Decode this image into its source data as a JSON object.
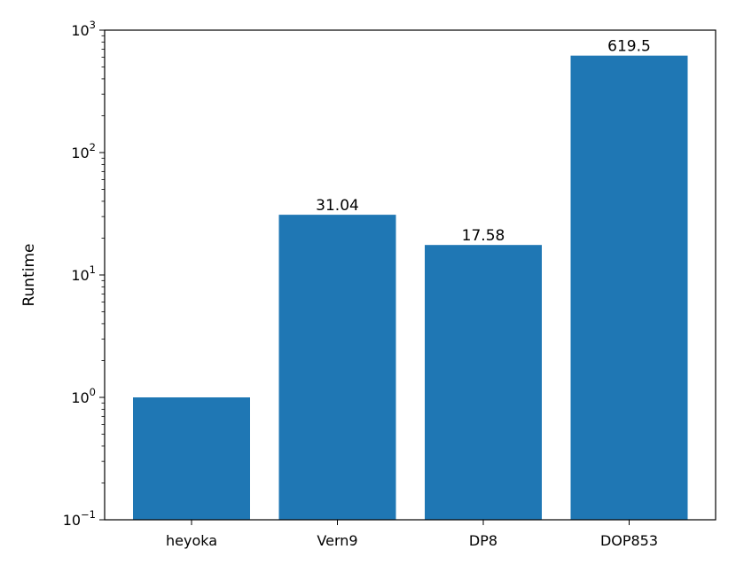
{
  "chart_data": {
    "type": "bar",
    "title": "",
    "xlabel": "",
    "ylabel": "Runtime",
    "yscale": "log",
    "ylim": [
      0.1,
      1000
    ],
    "categories": [
      "heyoka",
      "Vern9",
      "DP8",
      "DOP853"
    ],
    "values": [
      1.0,
      31.04,
      17.58,
      619.5
    ],
    "data_labels": [
      "",
      "31.04",
      "17.58",
      "619.5"
    ],
    "y_ticks": [
      {
        "base": "10",
        "exp": "−1",
        "value": 0.1
      },
      {
        "base": "10",
        "exp": "0",
        "value": 1
      },
      {
        "base": "10",
        "exp": "1",
        "value": 10
      },
      {
        "base": "10",
        "exp": "2",
        "value": 100
      },
      {
        "base": "10",
        "exp": "3",
        "value": 1000
      }
    ],
    "bar_color": "#1f77b4",
    "grid": false,
    "legend": false
  }
}
